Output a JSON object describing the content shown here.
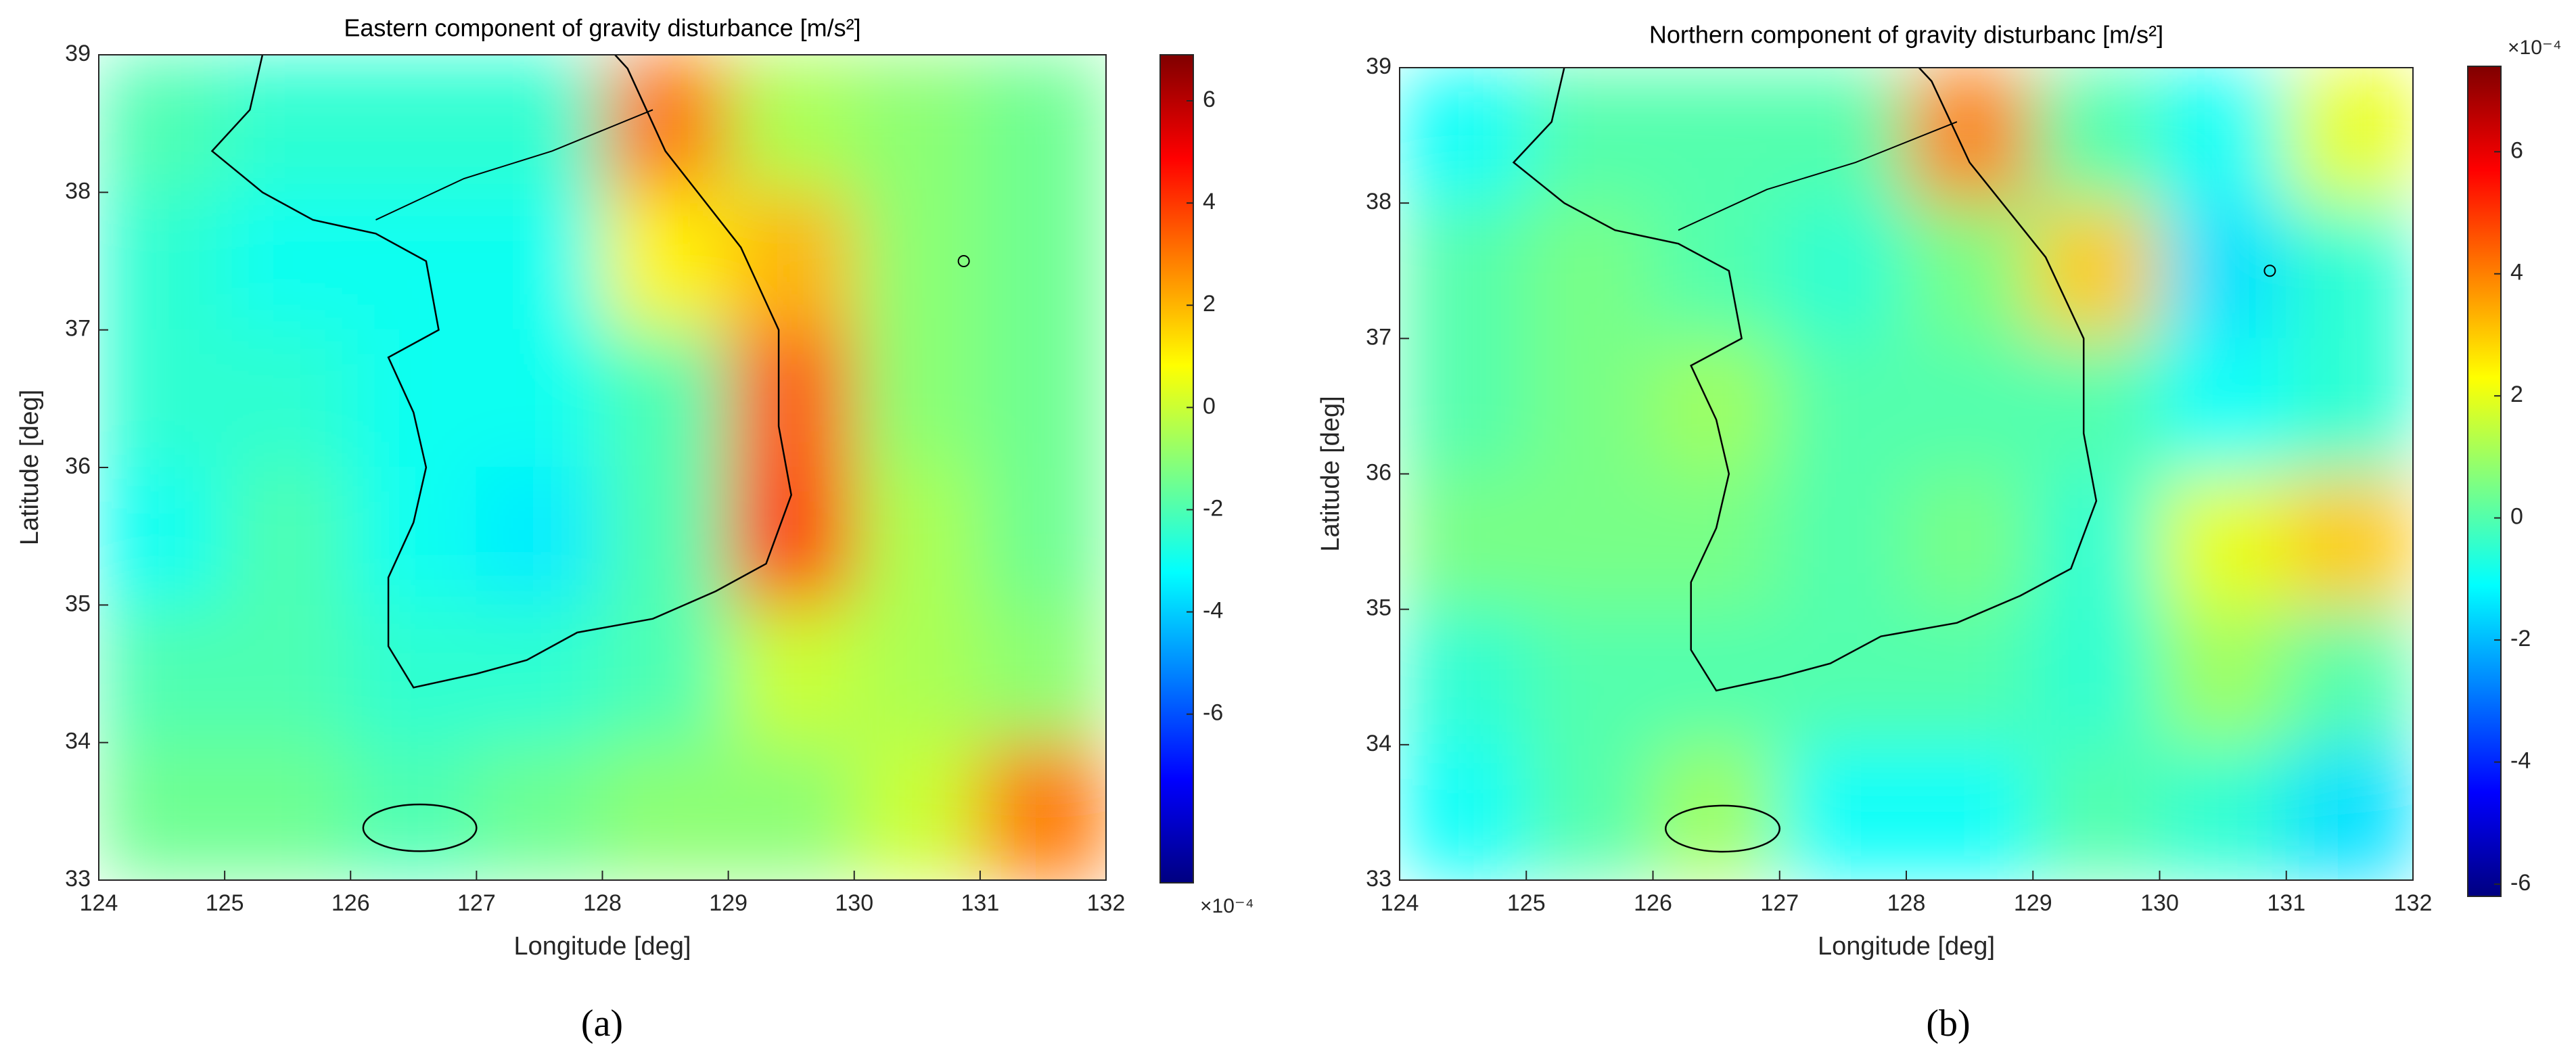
{
  "chart_data": [
    {
      "type": "heatmap",
      "title": "Eastern component of gravity disturbance [m/s²]",
      "x_label": "Longitude [deg]",
      "y_label": "Latitude [deg]",
      "x": [
        124.5,
        125.5,
        126.5,
        127.5,
        128.5,
        129.5,
        130.5,
        131.5
      ],
      "y": [
        38.5,
        37.5,
        36.5,
        35.5,
        34.5,
        33.5
      ],
      "z": [
        [
          -2,
          -2.5,
          -2.5,
          -2.5,
          3,
          -0.5,
          -1,
          -1.5
        ],
        [
          -2.5,
          -3,
          -3,
          -3,
          1,
          2,
          -1,
          -1.5
        ],
        [
          -2.5,
          -2.5,
          -3,
          -3,
          -2,
          3.5,
          -1,
          -1.5
        ],
        [
          -3,
          -2,
          -3,
          -3.5,
          -2,
          4,
          -0.5,
          -1.5
        ],
        [
          -2,
          -2,
          -2.5,
          -2.5,
          -2,
          0,
          -0.5,
          -1
        ],
        [
          -1.5,
          -1.5,
          -2,
          -1.5,
          -1,
          -1,
          0,
          3
        ]
      ],
      "xlim": [
        124,
        132
      ],
      "xticks": [
        124,
        125,
        126,
        127,
        128,
        129,
        130,
        131,
        132
      ],
      "ylim": [
        33,
        39
      ],
      "yticks": [
        33,
        34,
        35,
        36,
        37,
        38,
        39
      ],
      "colormap": "jet",
      "clim": [
        -9.3,
        6.9
      ],
      "cticks": [
        -6,
        -4,
        -2,
        0,
        2,
        4,
        6
      ],
      "colorbar_label": "×10⁻⁴",
      "colorbar_label_position": "bottom",
      "caption": "(a)"
    },
    {
      "type": "heatmap",
      "title": "Northern component of gravity disturbanc [m/s²]",
      "x_label": "Longitude [deg]",
      "y_label": "Latitude [deg]",
      "x": [
        124.5,
        125.5,
        126.5,
        127.5,
        128.5,
        129.5,
        130.5,
        131.5
      ],
      "y": [
        38.5,
        37.5,
        36.5,
        35.5,
        34.5,
        33.5
      ],
      "z": [
        [
          -1,
          0,
          0,
          0,
          4,
          0,
          -1,
          2
        ],
        [
          0,
          0.5,
          0,
          -0.5,
          0.5,
          3,
          -1.5,
          -0.5
        ],
        [
          0,
          0.5,
          1,
          0,
          0,
          0,
          -1,
          -0.5
        ],
        [
          0.5,
          0.5,
          0.5,
          0,
          0.5,
          -0.5,
          2,
          3
        ],
        [
          -0.5,
          0,
          0,
          0,
          0,
          -0.5,
          1,
          0
        ],
        [
          -1,
          0,
          1,
          -1,
          -1,
          0,
          -0.5,
          -1.5
        ]
      ],
      "xlim": [
        124,
        132
      ],
      "xticks": [
        124,
        125,
        126,
        127,
        128,
        129,
        130,
        131,
        132
      ],
      "ylim": [
        33,
        39
      ],
      "yticks": [
        33,
        34,
        35,
        36,
        37,
        38,
        39
      ],
      "colormap": "jet",
      "clim": [
        -6.2,
        7.4
      ],
      "cticks": [
        -6,
        -4,
        -2,
        0,
        2,
        4,
        6
      ],
      "colorbar_label": "×10⁻⁴",
      "colorbar_label_position": "top",
      "caption": "(b)"
    }
  ]
}
